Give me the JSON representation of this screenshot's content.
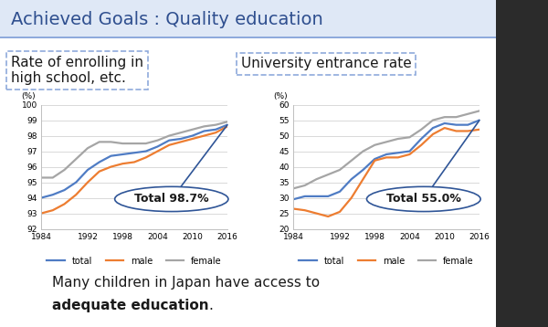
{
  "slide_title": "Achieved Goals : Quality education",
  "caption": [
    [
      {
        "text": "Many children in Japan have access to",
        "bold": false
      }
    ],
    [
      {
        "text": "adequate education",
        "bold": true
      },
      {
        "text": ".",
        "bold": false
      }
    ]
  ],
  "chart_data": [
    {
      "type": "line",
      "title": "Rate of enrolling in\nhigh school, etc.",
      "y_label": "(%)",
      "x": [
        1984,
        1986,
        1988,
        1990,
        1992,
        1994,
        1996,
        1998,
        2000,
        2002,
        2004,
        2006,
        2008,
        2010,
        2012,
        2014,
        2016
      ],
      "xlim": [
        1984,
        2016
      ],
      "xticks": [
        1984,
        1992,
        1998,
        2004,
        2010,
        2016
      ],
      "ylim": [
        92,
        100
      ],
      "yticks": [
        92,
        93,
        94,
        95,
        96,
        97,
        98,
        99,
        100
      ],
      "grid": true,
      "legend": "lower center",
      "series": [
        {
          "name": "total",
          "color": "#4f7cc4",
          "values": [
            94.0,
            94.2,
            94.5,
            95.0,
            95.8,
            96.3,
            96.7,
            96.8,
            96.9,
            97.0,
            97.3,
            97.7,
            97.8,
            98.0,
            98.3,
            98.4,
            98.7
          ]
        },
        {
          "name": "male",
          "color": "#ed7d31",
          "values": [
            93.0,
            93.2,
            93.6,
            94.2,
            95.0,
            95.7,
            96.0,
            96.2,
            96.3,
            96.6,
            97.0,
            97.4,
            97.6,
            97.8,
            98.0,
            98.2,
            98.6
          ]
        },
        {
          "name": "female",
          "color": "#a5a5a5",
          "values": [
            95.3,
            95.3,
            95.8,
            96.5,
            97.2,
            97.6,
            97.6,
            97.5,
            97.5,
            97.5,
            97.7,
            98.0,
            98.2,
            98.4,
            98.6,
            98.7,
            98.9
          ]
        }
      ],
      "annotation": {
        "prefix": "Total",
        "value": 98.7,
        "label": "98.7%"
      }
    },
    {
      "type": "line",
      "title": "University entrance rate",
      "y_label": "(%)",
      "x": [
        1984,
        1986,
        1988,
        1990,
        1992,
        1994,
        1996,
        1998,
        2000,
        2002,
        2004,
        2006,
        2008,
        2010,
        2012,
        2014,
        2016
      ],
      "xlim": [
        1984,
        2016
      ],
      "xticks": [
        1984,
        1992,
        1998,
        2004,
        2010,
        2016
      ],
      "ylim": [
        20,
        60
      ],
      "yticks": [
        20,
        25,
        30,
        35,
        40,
        45,
        50,
        55,
        60
      ],
      "grid": true,
      "legend": "lower center",
      "series": [
        {
          "name": "total",
          "color": "#4f7cc4",
          "values": [
            29.5,
            30.5,
            30.5,
            30.5,
            32.0,
            36.0,
            39.0,
            42.5,
            44.0,
            44.5,
            45.0,
            49.0,
            52.5,
            54.0,
            53.5,
            53.5,
            55.0
          ]
        },
        {
          "name": "male",
          "color": "#ed7d31",
          "values": [
            26.5,
            26.0,
            25.0,
            24.0,
            25.5,
            30.0,
            36.0,
            42.0,
            43.0,
            43.0,
            44.0,
            47.0,
            50.5,
            52.5,
            51.5,
            51.5,
            52.0
          ]
        },
        {
          "name": "female",
          "color": "#a5a5a5",
          "values": [
            33.0,
            34.0,
            36.0,
            37.5,
            39.0,
            42.0,
            45.0,
            47.0,
            48.0,
            49.0,
            49.5,
            52.0,
            55.0,
            56.0,
            56.0,
            57.0,
            58.0
          ]
        }
      ],
      "annotation": {
        "prefix": "Total",
        "value": 55.0,
        "label": "55.0%"
      }
    }
  ]
}
